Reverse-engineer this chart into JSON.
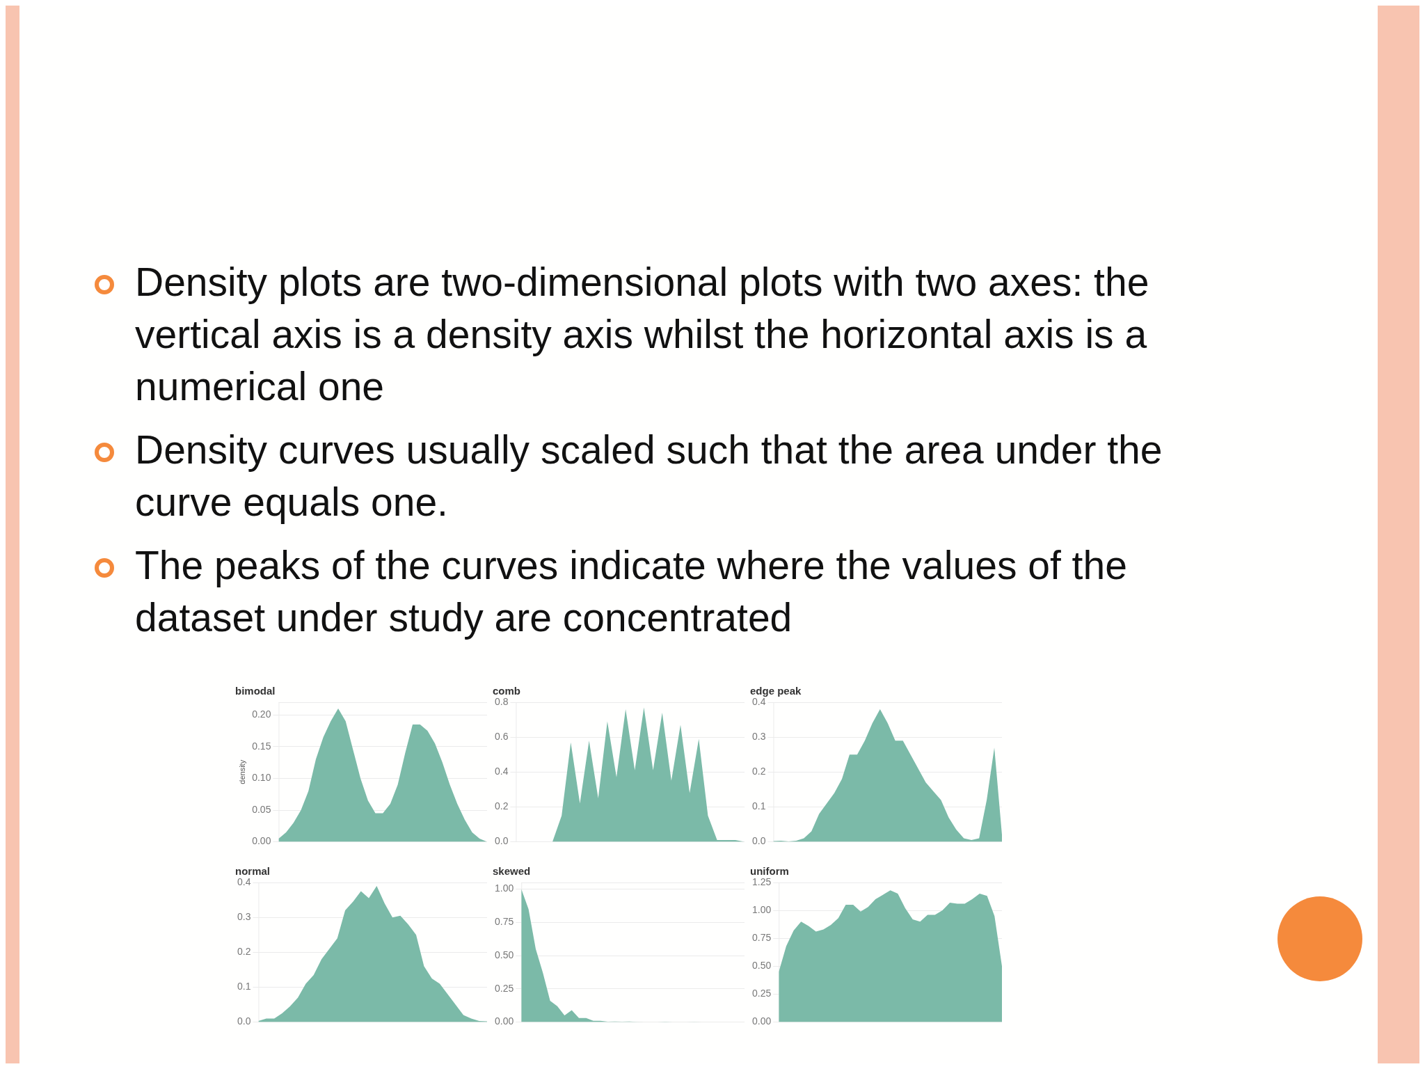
{
  "chart_data": [
    {
      "type": "area",
      "title": "bimodal",
      "ylabel": "density",
      "color": "#7bbaa8",
      "grid": "y",
      "ylim": [
        0,
        0.22
      ],
      "yticks": [
        {
          "value": 0,
          "label": "0.00"
        },
        {
          "value": 0.05,
          "label": "0.05"
        },
        {
          "value": 0.1,
          "label": "0.10"
        },
        {
          "value": 0.15,
          "label": "0.15"
        },
        {
          "value": 0.2,
          "label": "0.20"
        }
      ],
      "categories": [
        null,
        null,
        null,
        null,
        null,
        null,
        null,
        null,
        null,
        null,
        null,
        null,
        null,
        null,
        null,
        null,
        null,
        null,
        null,
        null,
        null,
        null,
        null,
        null,
        null,
        null,
        null,
        null,
        null
      ],
      "values": [
        0.005,
        0.015,
        0.03,
        0.05,
        0.08,
        0.13,
        0.165,
        0.19,
        0.21,
        0.19,
        0.145,
        0.1,
        0.065,
        0.045,
        0.045,
        0.06,
        0.09,
        0.14,
        0.185,
        0.185,
        0.175,
        0.155,
        0.125,
        0.09,
        0.06,
        0.035,
        0.015,
        0.005,
        0
      ],
      "annotations": [
        "Density plots are two-dimensional plots with two axes: the vertical axis is a density axis whilst the horizontal axis is a numerical one",
        "Density curves usually scaled such that the area under the curve equals one.",
        "The peaks of the curves indicate where the values of the dataset under study are concentrated"
      ]
    },
    {
      "type": "area",
      "title": "comb",
      "color": "#7bbaa8",
      "grid": "y",
      "ylim": [
        0,
        0.8
      ],
      "yticks": [
        {
          "value": 0,
          "label": "0.0"
        },
        0.2,
        0.4,
        0.6,
        0.8
      ],
      "categories": [
        null,
        null,
        null,
        null,
        null,
        null,
        null,
        null,
        null,
        null,
        null,
        null,
        null,
        null,
        null,
        null,
        null,
        null,
        null,
        null,
        null,
        null,
        null,
        null,
        null,
        null
      ],
      "values": [
        0,
        0,
        0,
        0,
        0,
        0.15,
        0.57,
        0.22,
        0.58,
        0.25,
        0.69,
        0.37,
        0.76,
        0.41,
        0.77,
        0.41,
        0.74,
        0.35,
        0.67,
        0.28,
        0.59,
        0.15,
        0.01,
        0.01,
        0.01,
        0
      ]
    },
    {
      "type": "area",
      "title": "edge peak",
      "color": "#7bbaa8",
      "grid": "y",
      "ylim": [
        0,
        0.4
      ],
      "yticks": [
        {
          "value": 0,
          "label": "0.0"
        },
        0.1,
        0.2,
        0.3,
        0.4
      ],
      "categories": [
        null,
        null,
        null,
        null,
        null,
        null,
        null,
        null,
        null,
        null,
        null,
        null,
        null,
        null,
        null,
        null,
        null,
        null,
        null,
        null,
        null,
        null,
        null,
        null,
        null,
        null,
        null,
        null,
        null,
        null,
        null
      ],
      "values": [
        0.002,
        0.003,
        0.001,
        0.003,
        0.01,
        0.03,
        0.08,
        0.11,
        0.14,
        0.18,
        0.25,
        0.25,
        0.29,
        0.34,
        0.38,
        0.34,
        0.29,
        0.29,
        0.25,
        0.21,
        0.17,
        0.145,
        0.12,
        0.07,
        0.035,
        0.01,
        0.005,
        0.01,
        0.12,
        0.27,
        0.02
      ]
    },
    {
      "type": "area",
      "title": "normal",
      "color": "#7bbaa8",
      "grid": "y",
      "ylim": [
        0,
        0.4
      ],
      "yticks": [
        {
          "value": 0,
          "label": "0.0"
        },
        0.1,
        0.2,
        0.3,
        0.4
      ],
      "categories": [
        null,
        null,
        null,
        null,
        null,
        null,
        null,
        null,
        null,
        null,
        null,
        null,
        null,
        null,
        null,
        null,
        null,
        null,
        null,
        null,
        null,
        null,
        null,
        null,
        null,
        null,
        null,
        null,
        null,
        null
      ],
      "values": [
        0.003,
        0.01,
        0.01,
        0.025,
        0.045,
        0.07,
        0.11,
        0.135,
        0.18,
        0.21,
        0.24,
        0.32,
        0.345,
        0.375,
        0.355,
        0.39,
        0.34,
        0.3,
        0.305,
        0.28,
        0.25,
        0.16,
        0.125,
        0.11,
        0.08,
        0.05,
        0.02,
        0.01,
        0.003,
        0.002
      ]
    },
    {
      "type": "area",
      "title": "skewed",
      "color": "#7bbaa8",
      "grid": "y",
      "ylim": [
        0,
        1.05
      ],
      "yticks": [
        {
          "value": 0,
          "label": "0.00"
        },
        0.25,
        {
          "value": 0.5,
          "label": "0.50"
        },
        0.75,
        {
          "value": 1,
          "label": "1.00"
        }
      ],
      "categories": [
        null,
        null,
        null,
        null,
        null,
        null,
        null,
        null,
        null,
        null,
        null,
        null,
        null,
        null,
        null,
        null,
        null,
        null,
        null,
        null,
        null,
        null,
        null,
        null,
        null,
        null,
        null,
        null,
        null,
        null,
        null,
        null
      ],
      "values": [
        1,
        0.85,
        0.55,
        0.37,
        0.16,
        0.12,
        0.05,
        0.09,
        0.03,
        0.03,
        0.01,
        0.01,
        0.003,
        0.005,
        0.003,
        0.004,
        0.002,
        0,
        0,
        0,
        0.003,
        0,
        0,
        0,
        0.002,
        0,
        0,
        0,
        0,
        0,
        0,
        0
      ]
    },
    {
      "type": "area",
      "title": "uniform",
      "color": "#7bbaa8",
      "grid": "y",
      "ylim": [
        0,
        1.25
      ],
      "yticks": [
        {
          "value": 0,
          "label": "0.00"
        },
        0.25,
        {
          "value": 0.5,
          "label": "0.50"
        },
        0.75,
        {
          "value": 1,
          "label": "1.00"
        },
        1.25
      ],
      "categories": [
        null,
        null,
        null,
        null,
        null,
        null,
        null,
        null,
        null,
        null,
        null,
        null,
        null,
        null,
        null,
        null,
        null,
        null,
        null,
        null,
        null,
        null,
        null,
        null,
        null,
        null,
        null,
        null,
        null,
        null,
        null
      ],
      "values": [
        0.45,
        0.68,
        0.82,
        0.9,
        0.86,
        0.81,
        0.83,
        0.87,
        0.93,
        1.05,
        1.05,
        0.99,
        1.03,
        1.1,
        1.14,
        1.18,
        1.15,
        1.02,
        0.92,
        0.9,
        0.96,
        0.96,
        1.0,
        1.07,
        1.06,
        1.06,
        1.1,
        1.15,
        1.13,
        0.95,
        0.5
      ]
    }
  ]
}
